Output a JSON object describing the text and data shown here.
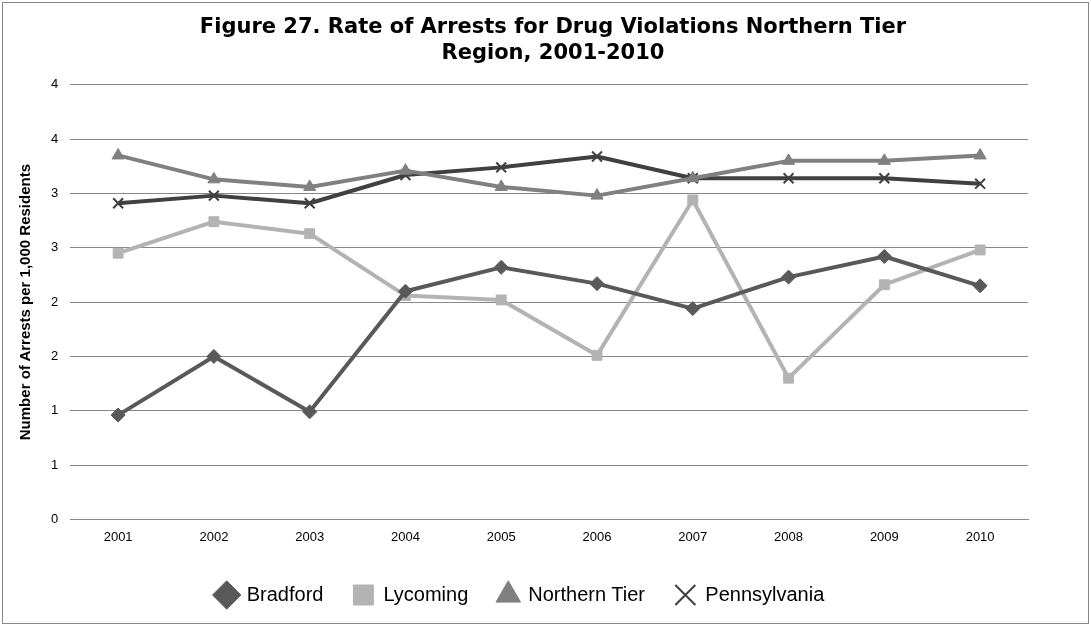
{
  "chart_data": {
    "type": "line",
    "title": "Figure 27. Rate of Arrests for Drug Violations Northern Tier Region, 2001-2010",
    "ylabel": "Number of Arrests per 1,000 Residents",
    "categories": [
      "2001",
      "2002",
      "2003",
      "2004",
      "2005",
      "2006",
      "2007",
      "2008",
      "2009",
      "2010"
    ],
    "series": [
      {
        "name": "Bradford",
        "color": "#595959",
        "marker": "diamond",
        "values": [
          0.96,
          1.5,
          0.99,
          2.1,
          2.32,
          2.17,
          1.94,
          2.23,
          2.42,
          2.15
        ]
      },
      {
        "name": "Lycoming",
        "color": "#b3b3b3",
        "marker": "square",
        "values": [
          2.45,
          2.74,
          2.63,
          2.06,
          2.02,
          1.51,
          2.94,
          1.3,
          2.16,
          2.48
        ]
      },
      {
        "name": "Northern Tier",
        "color": "#808080",
        "marker": "triangle",
        "values": [
          3.35,
          3.13,
          3.06,
          3.21,
          3.06,
          2.98,
          3.14,
          3.3,
          3.3,
          3.35
        ]
      },
      {
        "name": "Pennsylvania",
        "color": "#404040",
        "marker": "cross",
        "values": [
          2.91,
          2.98,
          2.91,
          3.17,
          3.24,
          3.34,
          3.14,
          3.14,
          3.14,
          3.09
        ]
      }
    ],
    "ylim": [
      0,
      4
    ],
    "yticks": [
      0,
      {
        "value": 0.5,
        "label": "1"
      },
      {
        "value": 1,
        "label": "1"
      },
      {
        "value": 1.5,
        "label": "2"
      },
      {
        "value": 2,
        "label": "2"
      },
      {
        "value": 2.5,
        "label": "3"
      },
      {
        "value": 3,
        "label": "3"
      },
      {
        "value": 3.5,
        "label": "4"
      },
      4
    ],
    "grid": "y",
    "legend": "bottom",
    "line_style": "solid"
  }
}
